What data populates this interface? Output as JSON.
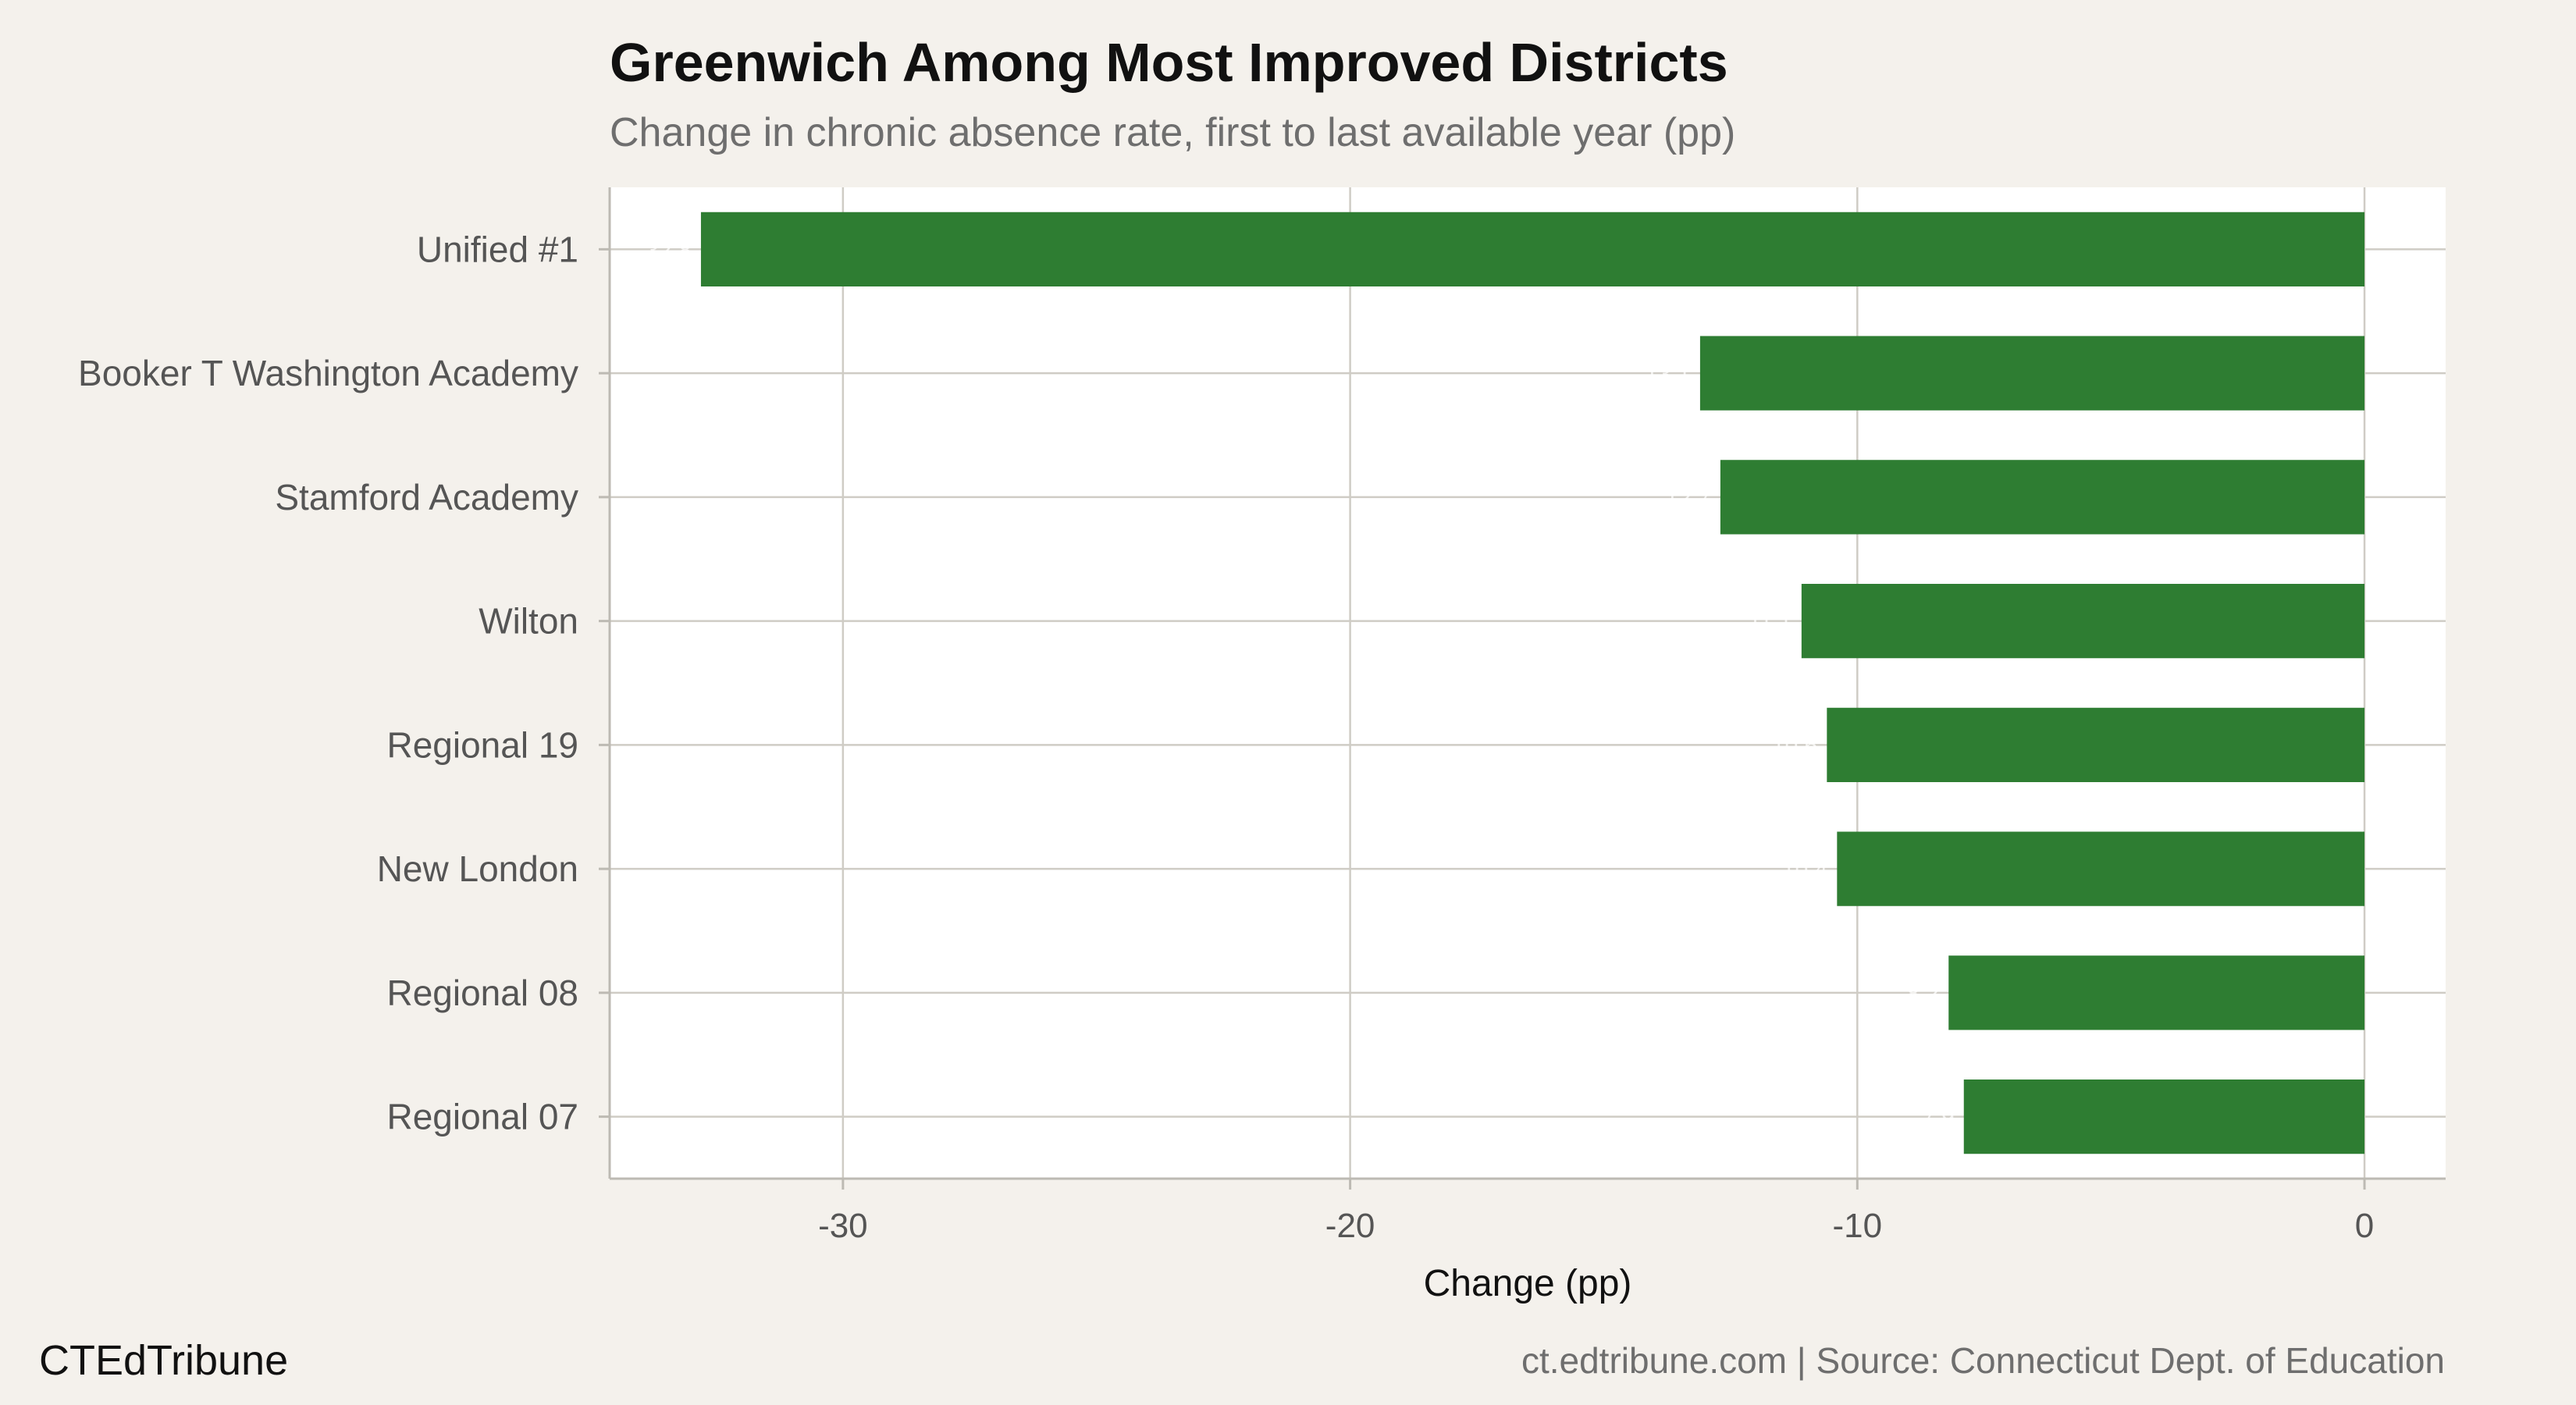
{
  "header": {
    "title": "Greenwich Among Most Improved Districts",
    "subtitle": "Change in chronic absence rate, first to last available year (pp)"
  },
  "footer": {
    "brand": "CTEdTribune",
    "source": "ct.edtribune.com | Source: Connecticut Dept. of Education"
  },
  "colors": {
    "bar": "#2e7d32",
    "panel": "#ffffff",
    "grid": "#cfccc5",
    "background": "#f4f1ec"
  },
  "chart_data": {
    "type": "bar",
    "orientation": "horizontal",
    "categories": [
      "Unified #1",
      "Booker T Washington Academy",
      "Stamford Academy",
      "Wilton",
      "Regional 19",
      "New London",
      "Regional 08",
      "Regional 07"
    ],
    "values": [
      -32.8,
      -13.1,
      -12.7,
      -11.1,
      -10.6,
      -10.4,
      -8.2,
      -7.9
    ],
    "xlabel": "Change (pp)",
    "ylabel": "",
    "xlim": [
      -34.6,
      1.6
    ],
    "xticks": [
      -30,
      -20,
      -10,
      0
    ],
    "xtick_labels": [
      "-30",
      "-20",
      "-10",
      "0"
    ],
    "grid": true,
    "legend": "none"
  }
}
